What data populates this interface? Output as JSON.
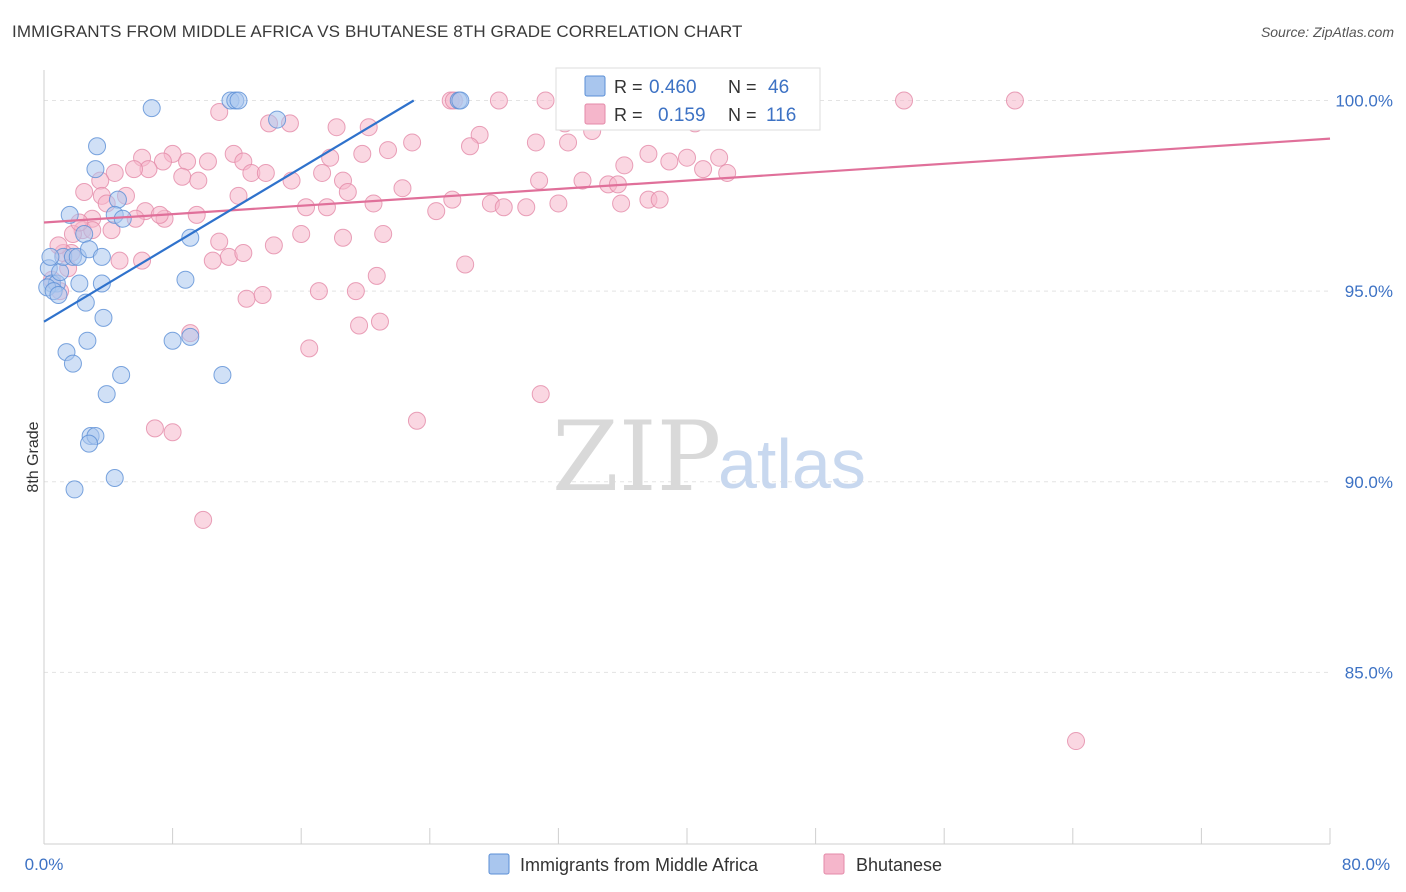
{
  "title": "IMMIGRANTS FROM MIDDLE AFRICA VS BHUTANESE 8TH GRADE CORRELATION CHART",
  "source": "Source: ZipAtlas.com",
  "watermark": {
    "zip": "ZIP",
    "atlas": "atlas"
  },
  "colors": {
    "blue_fill": "#a9c6ee",
    "blue_stroke": "#5b8fd6",
    "blue_line": "#2f72cc",
    "pink_fill": "#f5b6cb",
    "pink_stroke": "#e48aa8",
    "pink_line": "#e0709a",
    "tick_text": "#3d72c4",
    "grid": "#e3e3e3"
  },
  "legend": {
    "rows": [
      {
        "r_label": "R =",
        "r_value": "0.460",
        "n_label": "N =",
        "n_value": "46"
      },
      {
        "r_label": "R =",
        "r_value": "0.159",
        "n_label": "N =",
        "n_value": "116"
      }
    ]
  },
  "chart_data": {
    "type": "scatter",
    "xlabel": "",
    "ylabel": "8th Grade",
    "xlim": [
      0,
      80
    ],
    "ylim": [
      80.5,
      100.8
    ],
    "x_tick_labels": [
      "0.0%",
      "80.0%"
    ],
    "y_ticks": [
      85,
      90,
      95,
      100
    ],
    "y_tick_labels": [
      "85.0%",
      "90.0%",
      "95.0%",
      "100.0%"
    ],
    "grid": true,
    "series": [
      {
        "name": "Immigrants from Middle Africa",
        "color": "blue",
        "trend": {
          "x0": 0,
          "y0": 94.2,
          "x1": 23.0,
          "y1": 100.0
        },
        "points": [
          [
            6.7,
            99.8
          ],
          [
            11.6,
            100.0
          ],
          [
            11.9,
            100.0
          ],
          [
            12.1,
            100.0
          ],
          [
            14.5,
            99.5
          ],
          [
            25.8,
            100.0
          ],
          [
            25.9,
            100.0
          ],
          [
            3.3,
            98.8
          ],
          [
            3.2,
            98.2
          ],
          [
            4.6,
            97.4
          ],
          [
            4.4,
            97.0
          ],
          [
            4.9,
            96.9
          ],
          [
            1.6,
            97.0
          ],
          [
            2.5,
            96.5
          ],
          [
            9.1,
            96.4
          ],
          [
            0.3,
            95.6
          ],
          [
            0.5,
            95.2
          ],
          [
            0.8,
            95.2
          ],
          [
            1.0,
            95.5
          ],
          [
            1.2,
            95.9
          ],
          [
            1.8,
            95.9
          ],
          [
            2.1,
            95.9
          ],
          [
            2.8,
            96.1
          ],
          [
            3.6,
            95.9
          ],
          [
            0.2,
            95.1
          ],
          [
            0.6,
            95.0
          ],
          [
            0.9,
            94.9
          ],
          [
            2.2,
            95.2
          ],
          [
            3.6,
            95.2
          ],
          [
            8.8,
            95.3
          ],
          [
            2.6,
            94.7
          ],
          [
            3.7,
            94.3
          ],
          [
            1.4,
            93.4
          ],
          [
            1.8,
            93.1
          ],
          [
            2.7,
            93.7
          ],
          [
            8.0,
            93.7
          ],
          [
            9.1,
            93.8
          ],
          [
            4.8,
            92.8
          ],
          [
            11.1,
            92.8
          ],
          [
            3.9,
            92.3
          ],
          [
            2.9,
            91.2
          ],
          [
            3.2,
            91.2
          ],
          [
            2.8,
            91.0
          ],
          [
            4.4,
            90.1
          ],
          [
            1.9,
            89.8
          ],
          [
            0.4,
            95.9
          ]
        ]
      },
      {
        "name": "Bhutanese",
        "color": "pink",
        "trend": {
          "x0": 0,
          "y0": 96.8,
          "x1": 80.0,
          "y1": 99.0
        },
        "points": [
          [
            25.3,
            100.0
          ],
          [
            25.5,
            100.0
          ],
          [
            28.3,
            100.0
          ],
          [
            31.2,
            100.0
          ],
          [
            33.8,
            100.0
          ],
          [
            44.5,
            100.0
          ],
          [
            47.1,
            100.0
          ],
          [
            53.5,
            100.0
          ],
          [
            60.4,
            100.0
          ],
          [
            32.4,
            99.4
          ],
          [
            34.1,
            99.2
          ],
          [
            43.8,
            99.6
          ],
          [
            10.9,
            99.7
          ],
          [
            14.0,
            99.4
          ],
          [
            15.3,
            99.4
          ],
          [
            18.2,
            99.3
          ],
          [
            20.2,
            99.3
          ],
          [
            27.1,
            99.1
          ],
          [
            30.6,
            98.9
          ],
          [
            32.6,
            98.9
          ],
          [
            22.9,
            98.9
          ],
          [
            21.4,
            98.7
          ],
          [
            19.8,
            98.6
          ],
          [
            11.8,
            98.6
          ],
          [
            17.8,
            98.5
          ],
          [
            8.0,
            98.6
          ],
          [
            6.1,
            98.5
          ],
          [
            7.4,
            98.4
          ],
          [
            8.9,
            98.4
          ],
          [
            10.2,
            98.4
          ],
          [
            12.4,
            98.4
          ],
          [
            37.6,
            98.6
          ],
          [
            38.9,
            98.4
          ],
          [
            40.0,
            98.5
          ],
          [
            41.0,
            98.2
          ],
          [
            42.5,
            98.1
          ],
          [
            36.1,
            98.3
          ],
          [
            6.5,
            98.2
          ],
          [
            5.6,
            98.2
          ],
          [
            12.9,
            98.1
          ],
          [
            13.8,
            98.1
          ],
          [
            17.3,
            98.1
          ],
          [
            8.6,
            98.0
          ],
          [
            4.4,
            98.1
          ],
          [
            3.5,
            97.9
          ],
          [
            15.4,
            97.9
          ],
          [
            9.6,
            97.9
          ],
          [
            18.6,
            97.9
          ],
          [
            30.8,
            97.9
          ],
          [
            33.5,
            97.9
          ],
          [
            35.1,
            97.8
          ],
          [
            35.7,
            97.8
          ],
          [
            35.9,
            97.3
          ],
          [
            37.6,
            97.4
          ],
          [
            2.5,
            97.6
          ],
          [
            3.6,
            97.5
          ],
          [
            12.1,
            97.5
          ],
          [
            20.5,
            97.3
          ],
          [
            25.4,
            97.4
          ],
          [
            27.8,
            97.3
          ],
          [
            28.6,
            97.2
          ],
          [
            16.3,
            97.2
          ],
          [
            17.6,
            97.2
          ],
          [
            24.4,
            97.1
          ],
          [
            38.3,
            97.4
          ],
          [
            32.0,
            97.3
          ],
          [
            9.5,
            97.0
          ],
          [
            6.3,
            97.1
          ],
          [
            3.0,
            96.9
          ],
          [
            5.7,
            96.9
          ],
          [
            7.5,
            96.9
          ],
          [
            10.9,
            96.3
          ],
          [
            11.5,
            95.9
          ],
          [
            12.4,
            96.0
          ],
          [
            14.3,
            96.2
          ],
          [
            16.0,
            96.5
          ],
          [
            18.6,
            96.4
          ],
          [
            21.1,
            96.5
          ],
          [
            26.2,
            95.7
          ],
          [
            2.4,
            96.6
          ],
          [
            3.0,
            96.6
          ],
          [
            4.2,
            96.6
          ],
          [
            1.8,
            96.5
          ],
          [
            1.7,
            96.0
          ],
          [
            1.2,
            96.0
          ],
          [
            0.9,
            96.2
          ],
          [
            4.7,
            95.8
          ],
          [
            6.1,
            95.8
          ],
          [
            9.1,
            93.9
          ],
          [
            12.6,
            94.8
          ],
          [
            17.1,
            95.0
          ],
          [
            19.4,
            95.0
          ],
          [
            20.7,
            95.4
          ],
          [
            16.5,
            93.5
          ],
          [
            19.6,
            94.1
          ],
          [
            20.9,
            94.2
          ],
          [
            30.9,
            92.3
          ],
          [
            23.2,
            91.6
          ],
          [
            6.9,
            91.4
          ],
          [
            8.0,
            91.3
          ],
          [
            9.9,
            89.0
          ],
          [
            64.2,
            83.2
          ],
          [
            39.5,
            100.0
          ],
          [
            40.5,
            99.4
          ],
          [
            42.0,
            98.5
          ],
          [
            18.9,
            97.6
          ],
          [
            22.3,
            97.7
          ],
          [
            26.5,
            98.8
          ],
          [
            1.5,
            95.6
          ],
          [
            0.5,
            95.3
          ],
          [
            1.0,
            95.0
          ],
          [
            5.1,
            97.5
          ],
          [
            3.9,
            97.3
          ],
          [
            2.2,
            96.8
          ],
          [
            7.2,
            97.0
          ],
          [
            10.5,
            95.8
          ],
          [
            13.6,
            94.9
          ],
          [
            30.0,
            97.2
          ]
        ]
      }
    ]
  },
  "bottom_legend": [
    {
      "label": "Immigrants from Middle Africa",
      "color": "blue"
    },
    {
      "label": "Bhutanese",
      "color": "pink"
    }
  ]
}
